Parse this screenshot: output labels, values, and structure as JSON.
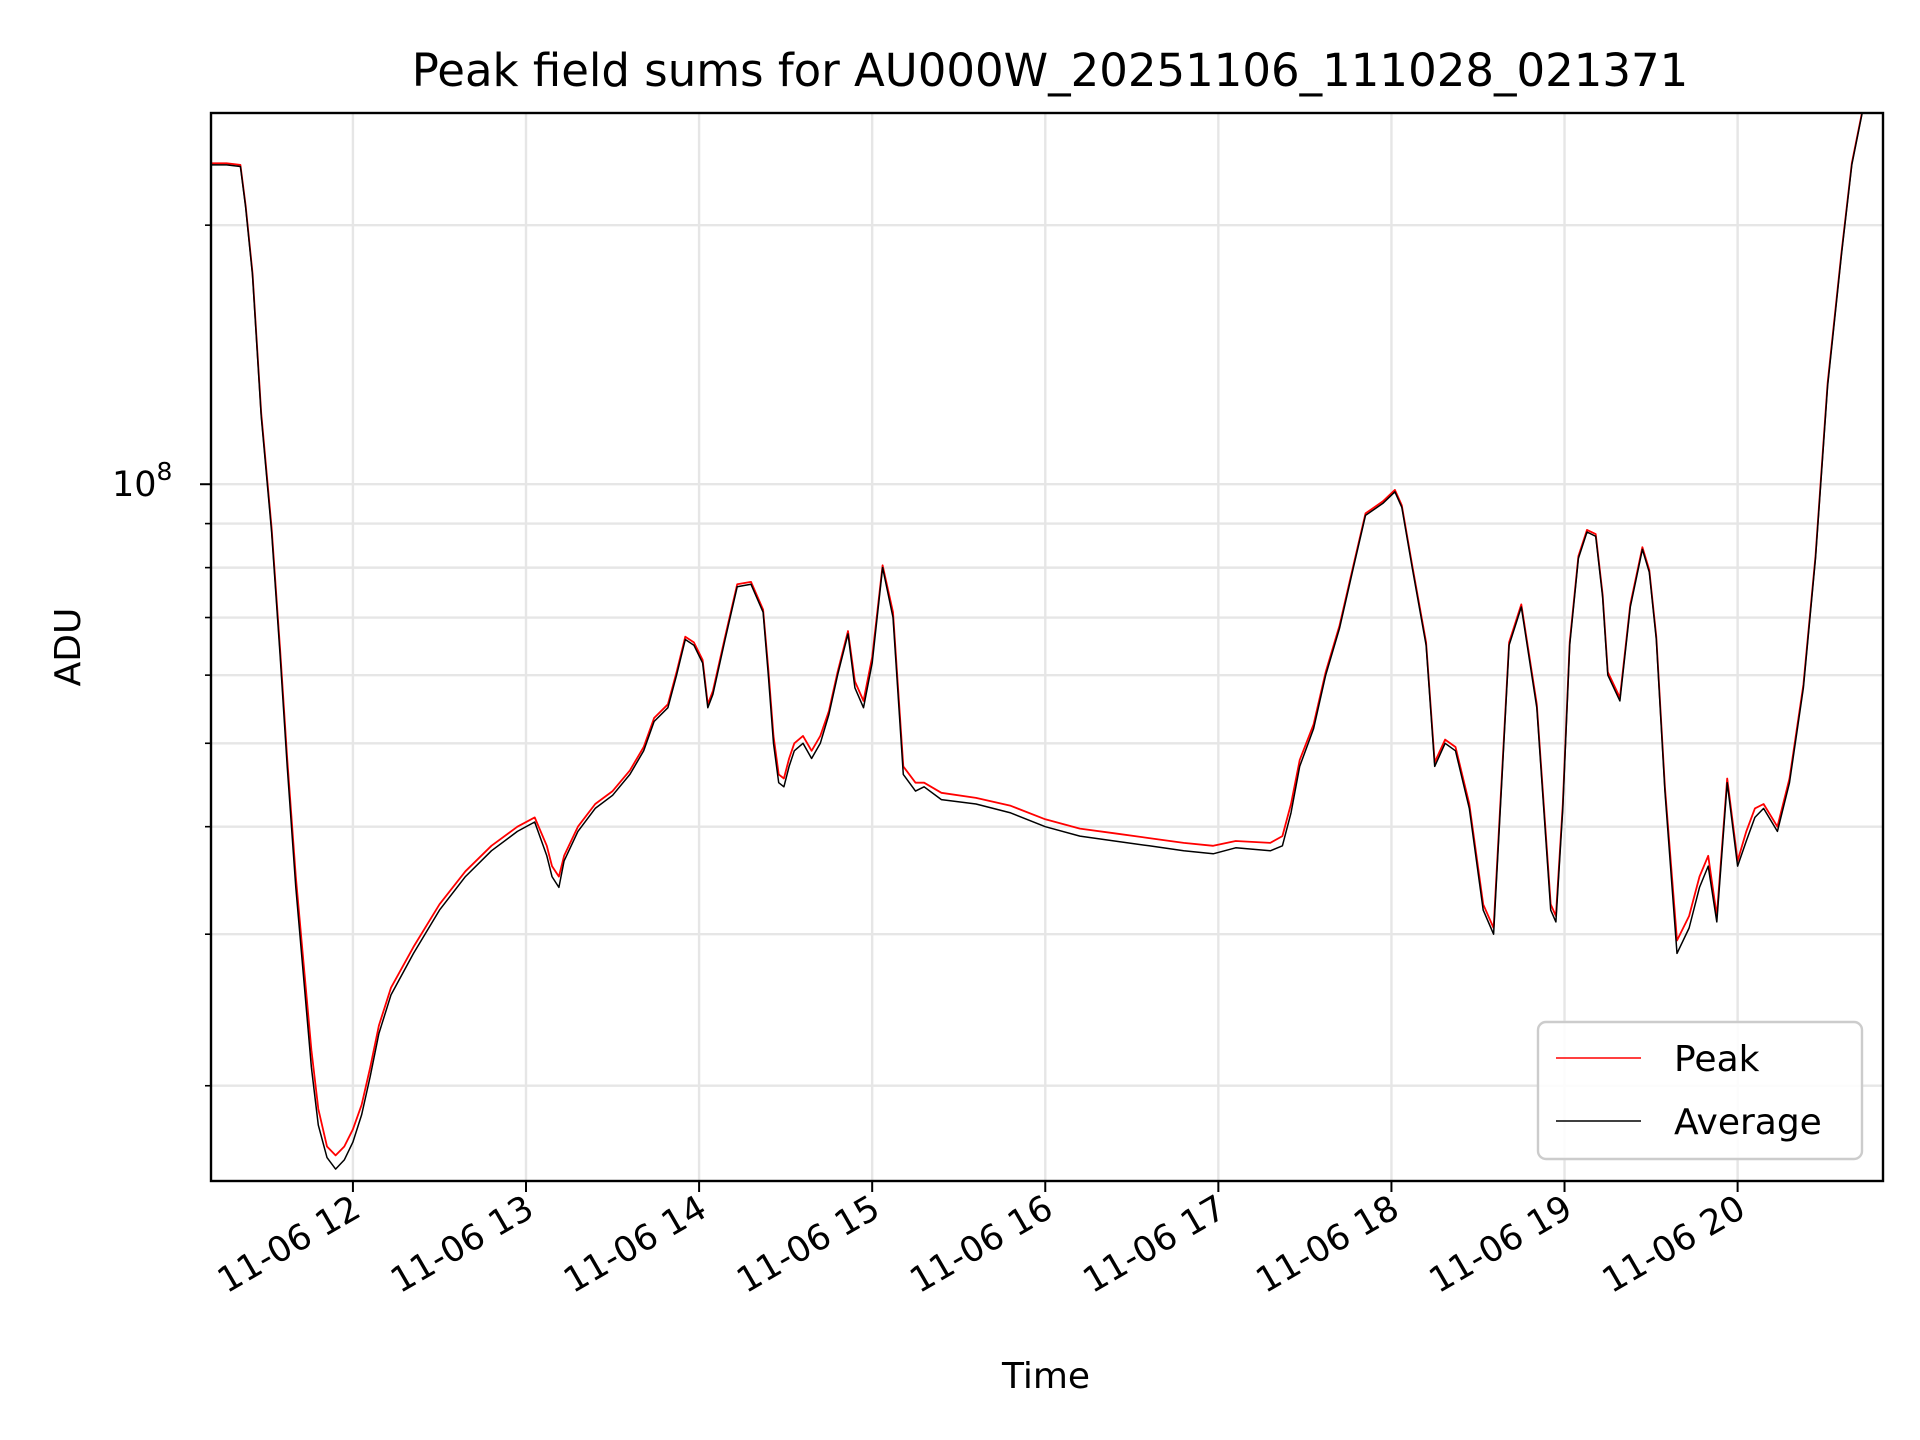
{
  "chart_data": {
    "type": "line",
    "title": "Peak field sums for AU000W_20251106_111028_021371",
    "xlabel": "Time",
    "ylabel": "ADU",
    "yscale": "log",
    "ylim": [
      15500000,
      270000000
    ],
    "xlim": [
      11.18,
      20.84
    ],
    "x_ticks": [
      {
        "v": 12,
        "label": "11-06 12"
      },
      {
        "v": 13,
        "label": "11-06 13"
      },
      {
        "v": 14,
        "label": "11-06 14"
      },
      {
        "v": 15,
        "label": "11-06 15"
      },
      {
        "v": 16,
        "label": "11-06 16"
      },
      {
        "v": 17,
        "label": "11-06 17"
      },
      {
        "v": 18,
        "label": "11-06 18"
      },
      {
        "v": 19,
        "label": "11-06 19"
      },
      {
        "v": 20,
        "label": "11-06 20"
      }
    ],
    "y_major_ticks": [
      {
        "v": 100000000,
        "base": "10",
        "exp": "8"
      }
    ],
    "y_minor_gridlines": [
      20000000,
      30000000,
      40000000,
      50000000,
      60000000,
      70000000,
      80000000,
      90000000,
      200000000
    ],
    "grid": true,
    "legend": {
      "position": "lower-right",
      "entries": [
        "Peak",
        "Average"
      ]
    },
    "colors": {
      "peak": "#ff0000",
      "average": "#000000"
    },
    "series": [
      {
        "name": "Average",
        "x": [
          11.18,
          11.27,
          11.35,
          11.38,
          11.42,
          11.47,
          11.53,
          11.58,
          11.62,
          11.67,
          11.72,
          11.76,
          11.8,
          11.85,
          11.9,
          11.95,
          12.0,
          12.05,
          12.1,
          12.15,
          12.22,
          12.35,
          12.5,
          12.65,
          12.8,
          12.95,
          13.05,
          13.12,
          13.15,
          13.19,
          13.22,
          13.3,
          13.4,
          13.5,
          13.6,
          13.68,
          13.74,
          13.82,
          13.87,
          13.92,
          13.97,
          14.02,
          14.05,
          14.08,
          14.15,
          14.22,
          14.3,
          14.37,
          14.4,
          14.43,
          14.46,
          14.49,
          14.52,
          14.55,
          14.6,
          14.65,
          14.7,
          14.75,
          14.8,
          14.86,
          14.9,
          14.95,
          15.0,
          15.06,
          15.12,
          15.18,
          15.25,
          15.3,
          15.4,
          15.6,
          15.8,
          16.0,
          16.2,
          16.4,
          16.6,
          16.8,
          16.97,
          17.1,
          17.3,
          17.37,
          17.42,
          17.47,
          17.55,
          17.62,
          17.7,
          17.78,
          17.85,
          17.95,
          18.02,
          18.06,
          18.12,
          18.2,
          18.25,
          18.31,
          18.37,
          18.45,
          18.53,
          18.59,
          18.68,
          18.75,
          18.84,
          18.92,
          18.95,
          18.99,
          19.03,
          19.08,
          19.13,
          19.18,
          19.22,
          19.25,
          19.32,
          19.38,
          19.45,
          19.49,
          19.53,
          19.58,
          19.65,
          19.72,
          19.78,
          19.83,
          19.88,
          19.94,
          20.0,
          20.05,
          20.1,
          20.15,
          20.23,
          20.3,
          20.38,
          20.45,
          20.52,
          20.6,
          20.66,
          20.72
        ],
        "y": [
          235000000,
          235000000,
          234000000,
          210000000,
          175000000,
          120000000,
          88000000,
          63000000,
          47000000,
          34000000,
          26000000,
          21000000,
          18000000,
          16500000,
          16000000,
          16400000,
          17200000,
          18500000,
          20500000,
          23000000,
          25500000,
          28500000,
          32000000,
          35000000,
          37500000,
          39500000,
          40500000,
          37000000,
          35000000,
          34000000,
          36500000,
          39500000,
          42000000,
          43500000,
          46000000,
          49000000,
          53000000,
          55000000,
          60000000,
          66000000,
          65000000,
          62000000,
          55000000,
          57000000,
          66000000,
          76000000,
          76500000,
          71000000,
          60000000,
          50000000,
          45000000,
          44500000,
          47000000,
          49000000,
          50000000,
          48000000,
          50000000,
          54000000,
          60000000,
          67000000,
          58000000,
          55000000,
          62000000,
          80000000,
          70000000,
          46000000,
          44000000,
          44500000,
          43000000,
          42500000,
          41500000,
          40000000,
          39000000,
          38500000,
          38000000,
          37500000,
          37200000,
          37800000,
          37500000,
          38000000,
          41500000,
          47000000,
          52000000,
          60000000,
          68000000,
          80000000,
          92000000,
          95000000,
          98000000,
          94000000,
          80000000,
          65000000,
          47000000,
          50000000,
          49000000,
          42000000,
          32000000,
          30000000,
          65000000,
          72000000,
          55000000,
          32000000,
          31000000,
          42000000,
          65000000,
          82000000,
          88000000,
          87000000,
          74000000,
          60000000,
          56000000,
          72000000,
          84000000,
          79000000,
          66000000,
          44000000,
          28500000,
          30500000,
          34000000,
          36000000,
          31000000,
          45000000,
          36000000,
          38500000,
          41000000,
          42000000,
          39500000,
          45000000,
          58000000,
          82000000,
          130000000,
          185000000,
          235000000,
          270000000
        ]
      },
      {
        "name": "Peak",
        "x": [
          11.18,
          11.27,
          11.35,
          11.38,
          11.42,
          11.47,
          11.53,
          11.58,
          11.62,
          11.67,
          11.72,
          11.76,
          11.8,
          11.85,
          11.9,
          11.95,
          12.0,
          12.05,
          12.1,
          12.15,
          12.22,
          12.35,
          12.5,
          12.65,
          12.8,
          12.95,
          13.05,
          13.12,
          13.15,
          13.19,
          13.22,
          13.3,
          13.4,
          13.5,
          13.6,
          13.68,
          13.74,
          13.82,
          13.87,
          13.92,
          13.97,
          14.02,
          14.05,
          14.08,
          14.15,
          14.22,
          14.3,
          14.37,
          14.4,
          14.43,
          14.46,
          14.49,
          14.52,
          14.55,
          14.6,
          14.65,
          14.7,
          14.75,
          14.8,
          14.86,
          14.9,
          14.95,
          15.0,
          15.06,
          15.12,
          15.18,
          15.25,
          15.3,
          15.4,
          15.6,
          15.8,
          16.0,
          16.2,
          16.4,
          16.6,
          16.8,
          16.97,
          17.1,
          17.3,
          17.37,
          17.42,
          17.47,
          17.55,
          17.62,
          17.7,
          17.78,
          17.85,
          17.95,
          18.02,
          18.06,
          18.12,
          18.2,
          18.25,
          18.31,
          18.37,
          18.45,
          18.53,
          18.59,
          18.68,
          18.75,
          18.84,
          18.92,
          18.95,
          18.99,
          19.03,
          19.08,
          19.13,
          19.18,
          19.22,
          19.25,
          19.32,
          19.38,
          19.45,
          19.49,
          19.53,
          19.58,
          19.65,
          19.72,
          19.78,
          19.83,
          19.88,
          19.94,
          20.0,
          20.05,
          20.1,
          20.15,
          20.23,
          20.3,
          20.38,
          20.45,
          20.52,
          20.6,
          20.66,
          20.72
        ],
        "y": [
          236000000,
          236000000,
          235000000,
          211000000,
          176000000,
          121000000,
          89000000,
          64000000,
          48000000,
          35000000,
          27000000,
          22000000,
          18800000,
          17000000,
          16600000,
          17000000,
          17800000,
          19000000,
          21000000,
          23500000,
          26000000,
          29000000,
          32500000,
          35500000,
          38000000,
          40000000,
          41000000,
          38000000,
          36000000,
          35000000,
          37000000,
          40000000,
          42500000,
          44000000,
          46500000,
          49500000,
          53500000,
          55500000,
          60500000,
          66500000,
          65500000,
          62500000,
          55500000,
          57500000,
          66500000,
          76500000,
          77000000,
          71500000,
          61000000,
          51000000,
          46000000,
          45500000,
          48000000,
          50000000,
          51000000,
          49000000,
          51000000,
          54500000,
          60500000,
          67500000,
          59000000,
          56000000,
          63000000,
          80500000,
          71000000,
          47000000,
          45000000,
          45000000,
          43800000,
          43200000,
          42300000,
          40800000,
          39800000,
          39300000,
          38800000,
          38300000,
          38000000,
          38500000,
          38300000,
          39000000,
          42500000,
          47800000,
          52600000,
          60500000,
          68500000,
          80500000,
          92500000,
          95500000,
          98500000,
          94500000,
          80500000,
          65500000,
          47500000,
          50500000,
          49500000,
          42500000,
          32500000,
          30500000,
          65500000,
          72500000,
          55500000,
          32500000,
          31500000,
          42500000,
          65500000,
          82500000,
          88500000,
          87500000,
          74500000,
          60500000,
          56500000,
          72500000,
          84500000,
          79500000,
          66500000,
          44500000,
          29500000,
          31500000,
          35000000,
          37000000,
          31500000,
          45500000,
          36500000,
          39500000,
          42000000,
          42500000,
          40000000,
          45500000,
          58500000,
          82500000,
          131000000,
          186000000,
          236000000,
          271000000
        ]
      }
    ]
  }
}
